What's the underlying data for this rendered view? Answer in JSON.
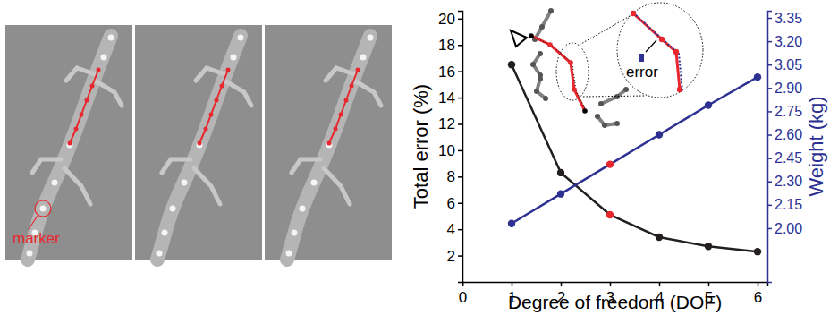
{
  "chart_data": {
    "type": "line",
    "x": [
      1,
      2,
      3,
      4,
      5,
      6
    ],
    "xlim": [
      0,
      6.2
    ],
    "xticks": [
      0,
      1,
      2,
      3,
      4,
      5,
      6
    ],
    "ylim": [
      0,
      20.6
    ],
    "yticks": [
      2,
      4,
      6,
      8,
      10,
      12,
      14,
      16,
      18,
      20
    ],
    "y2lim": [
      1.655,
      3.396
    ],
    "y2ticks": [
      {
        "value": 2,
        "label": "2.00"
      },
      {
        "value": 2.15,
        "label": "2.15"
      },
      {
        "value": 2.3,
        "label": "2.30"
      },
      {
        "value": 2.45,
        "label": "2.45"
      },
      {
        "value": 2.6,
        "label": "2.60"
      },
      {
        "value": 2.75,
        "label": "2.75"
      },
      {
        "value": 2.9,
        "label": "2.90"
      },
      {
        "value": 3.05,
        "label": "3.05"
      },
      {
        "value": 3.2,
        "label": "3.20"
      },
      {
        "value": 3.35,
        "label": "3.35"
      }
    ],
    "xlabel": "Degree of freedom (DOF)",
    "ylabel": "Total error (%)",
    "y2label": "Weight (kg)",
    "series": [
      {
        "color": "#231f20",
        "colors": [
          "#231f20",
          "#231f20",
          "#e8282e",
          "#231f20",
          "#231f20",
          "#231f20"
        ],
        "marker": "circle",
        "values": [
          16.5,
          8.3,
          5.1,
          3.4,
          2.7,
          2.3
        ]
      },
      {
        "axis": "y2",
        "color": "#2e3192",
        "colors": [
          "#2e3192",
          "#2e3192",
          "#e8282e",
          "#2e3192",
          "#2e3192",
          "#2e3192"
        ],
        "marker": "circle",
        "values": [
          2.03,
          2.22,
          2.41,
          2.6,
          2.79,
          2.97
        ]
      }
    ],
    "annotations": [
      {
        "text": "error"
      }
    ]
  },
  "photos": {
    "count": 3,
    "label": "marker"
  }
}
